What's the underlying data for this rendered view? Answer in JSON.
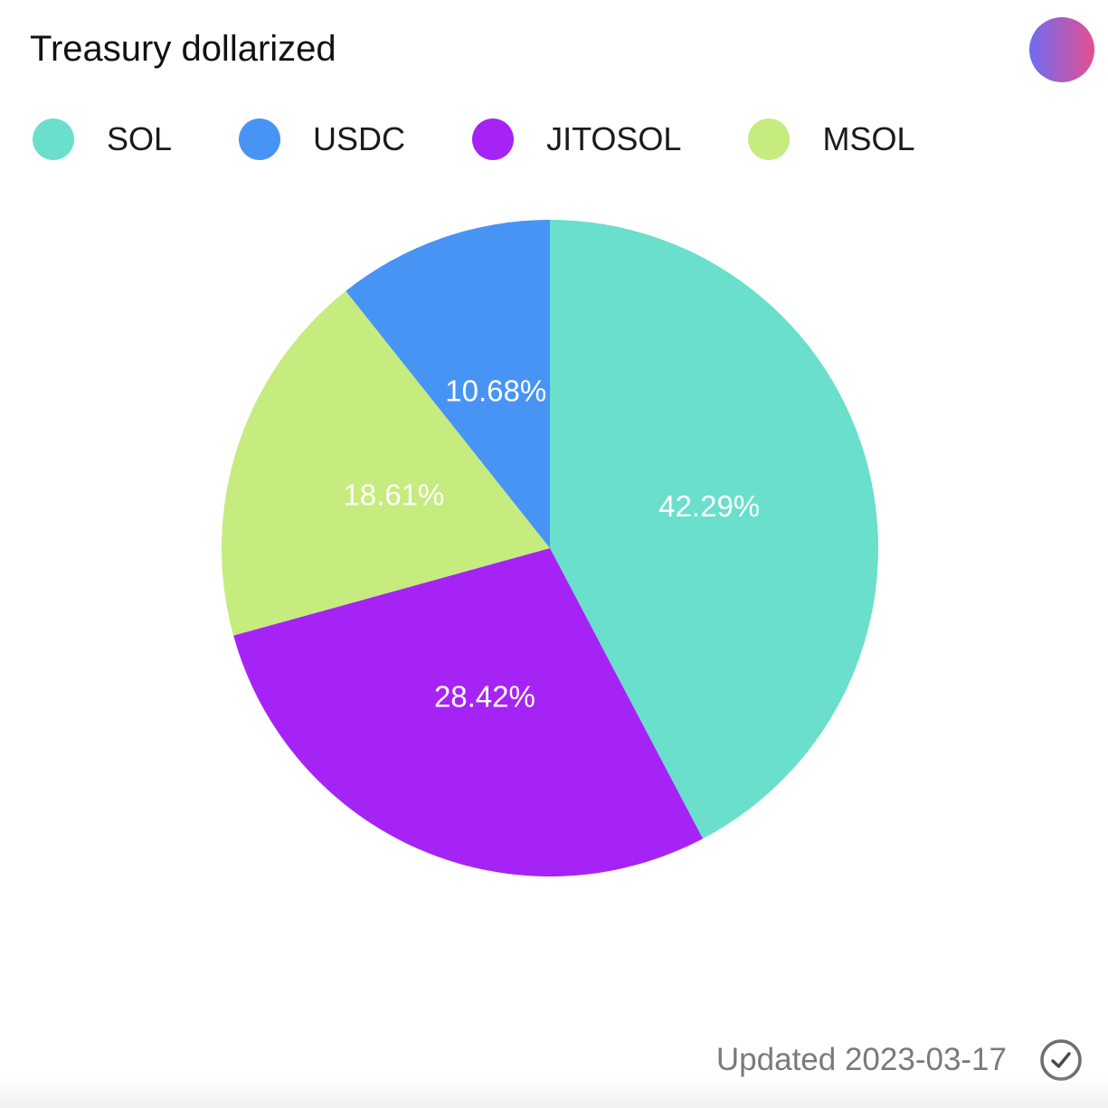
{
  "header": {
    "title": "Treasury dollarized",
    "avatar_gradient": [
      "#6f6cf2",
      "#e34f8f"
    ]
  },
  "chart_data": {
    "type": "pie",
    "title": "Treasury dollarized",
    "categories": [
      "SOL",
      "USDC",
      "JITOSOL",
      "MSOL"
    ],
    "values": [
      42.29,
      10.68,
      28.42,
      18.61
    ],
    "labels": [
      "42.29%",
      "10.68%",
      "28.42%",
      "18.61%"
    ],
    "colors": [
      "#69dfcc",
      "#4894f5",
      "#a623f5",
      "#c6eb7f"
    ],
    "slice_order": [
      "SOL",
      "JITOSOL",
      "MSOL",
      "USDC"
    ],
    "start_angle": "top",
    "direction": "clockwise",
    "legend_position": "top-left"
  },
  "footer": {
    "updated_text": "Updated 2023-03-17",
    "status_icon": "check-circle-icon"
  }
}
